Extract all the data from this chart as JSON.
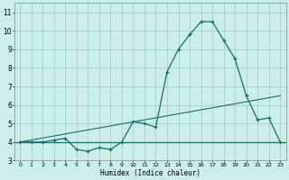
{
  "xlabel": "Humidex (Indice chaleur)",
  "bg_color": "#cceee8",
  "grid_color": "#99cccc",
  "line_color": "#1a6e6e",
  "xlim": [
    -0.5,
    23.5
  ],
  "ylim": [
    3.0,
    11.5
  ],
  "xticks": [
    0,
    1,
    2,
    3,
    4,
    5,
    6,
    7,
    8,
    9,
    10,
    11,
    12,
    13,
    14,
    15,
    16,
    17,
    18,
    19,
    20,
    21,
    22,
    23
  ],
  "yticks": [
    3,
    4,
    5,
    6,
    7,
    8,
    9,
    10,
    11
  ],
  "humidex_x": [
    0,
    1,
    2,
    3,
    4,
    5,
    6,
    7,
    8,
    9,
    10,
    11,
    12,
    13,
    14,
    15,
    16,
    17,
    18,
    19,
    20,
    21,
    22,
    23
  ],
  "humidex_y": [
    4.0,
    4.0,
    4.0,
    4.1,
    4.2,
    3.6,
    3.5,
    3.7,
    3.6,
    4.0,
    5.1,
    5.0,
    4.8,
    7.8,
    9.0,
    9.8,
    10.5,
    10.5,
    9.5,
    8.5,
    6.5,
    5.2,
    5.3,
    4.0
  ],
  "trend_x": [
    0,
    23
  ],
  "trend_y": [
    4.0,
    6.5
  ],
  "baseline_y": 4.0
}
